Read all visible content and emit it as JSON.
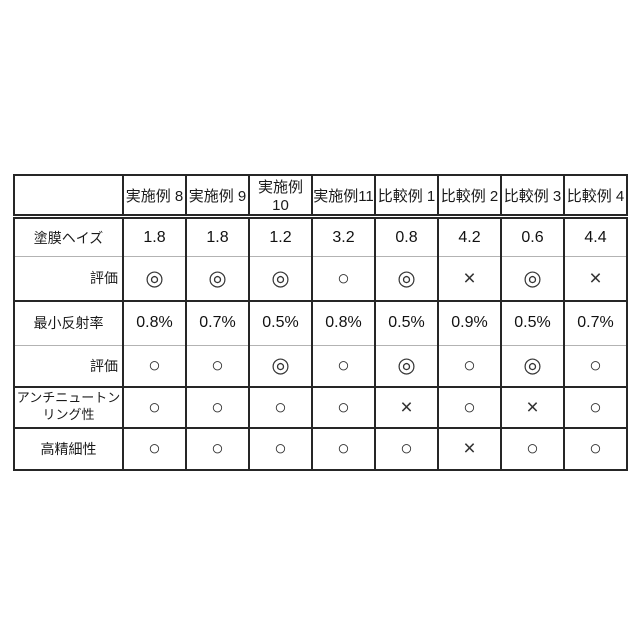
{
  "page": {
    "background": "#ffffff",
    "border_color": "#262626",
    "thin_line_color": "#b3b3b3"
  },
  "table": {
    "columns": [
      "実施例 8",
      "実施例 9",
      "実施例10",
      "実施例11",
      "比較例 1",
      "比較例 2",
      "比較例 3",
      "比較例 4"
    ],
    "rows": [
      {
        "label": "塗膜ヘイズ",
        "cells": [
          "1.8",
          "1.8",
          "1.2",
          "3.2",
          "0.8",
          "4.2",
          "0.6",
          "4.4"
        ]
      },
      {
        "label": "評価",
        "cells": [
          "◎",
          "◎",
          "◎",
          "○",
          "◎",
          "×",
          "◎",
          "×"
        ]
      },
      {
        "label": "最小反射率",
        "cells": [
          "0.8%",
          "0.7%",
          "0.5%",
          "0.8%",
          "0.5%",
          "0.9%",
          "0.5%",
          "0.7%"
        ]
      },
      {
        "label": "評価",
        "cells": [
          "○",
          "○",
          "◎",
          "○",
          "◎",
          "○",
          "◎",
          "○"
        ]
      },
      {
        "label_lines": [
          "アンチニュートン",
          "リング性"
        ],
        "cells": [
          "○",
          "○",
          "○",
          "○",
          "×",
          "○",
          "×",
          "○"
        ]
      },
      {
        "label": "高精細性",
        "cells": [
          "○",
          "○",
          "○",
          "○",
          "○",
          "×",
          "○",
          "○"
        ]
      }
    ]
  }
}
